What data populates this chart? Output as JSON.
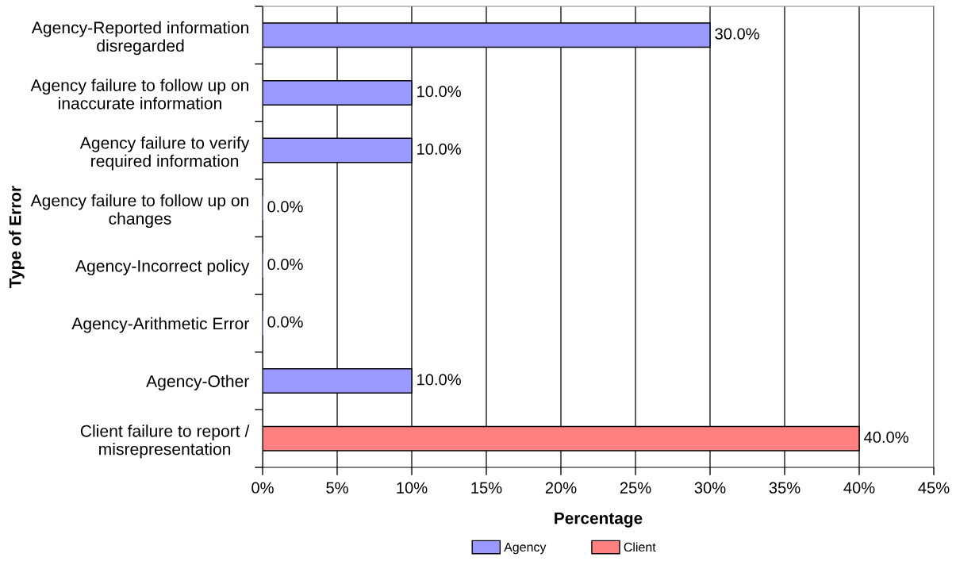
{
  "chart_data": {
    "type": "bar",
    "orientation": "horizontal",
    "stacked": true,
    "categories": [
      "Agency-Reported information\ndisregarded",
      "Agency failure to follow up on\ninaccurate information",
      "Agency failure to verify\nrequired information",
      "Agency failure to follow up on\nchanges",
      "Agency-Incorrect policy",
      "Agency-Arithmetic Error",
      "Agency-Other",
      "Client failure to report /\nmisrepresentation"
    ],
    "series": [
      {
        "name": "Agency",
        "color": "#9999ff",
        "values": [
          30,
          10,
          10,
          0,
          0,
          0,
          10,
          null
        ],
        "value_labels": [
          "30.0%",
          "10.0%",
          "10.0%",
          "0.0%",
          "0.0%",
          "0.0%",
          "10.0%",
          null
        ]
      },
      {
        "name": "Client",
        "color": "#ff8080",
        "values": [
          null,
          null,
          null,
          null,
          null,
          null,
          null,
          40
        ],
        "value_labels": [
          null,
          null,
          null,
          null,
          null,
          null,
          null,
          "40.0%"
        ]
      }
    ],
    "xlim": [
      0,
      45
    ],
    "xticks": [
      {
        "value": 0,
        "label": "0%"
      },
      {
        "value": 5,
        "label": "5%"
      },
      {
        "value": 10,
        "label": "10%"
      },
      {
        "value": 15,
        "label": "15%"
      },
      {
        "value": 20,
        "label": "20%"
      },
      {
        "value": 25,
        "label": "25%"
      },
      {
        "value": 30,
        "label": "30%"
      },
      {
        "value": 35,
        "label": "35%"
      },
      {
        "value": 40,
        "label": "40%"
      },
      {
        "value": 45,
        "label": "45%"
      }
    ],
    "xlabel": "Percentage",
    "ylabel": "Type of Error",
    "grid": "x",
    "legend": "bottom"
  }
}
